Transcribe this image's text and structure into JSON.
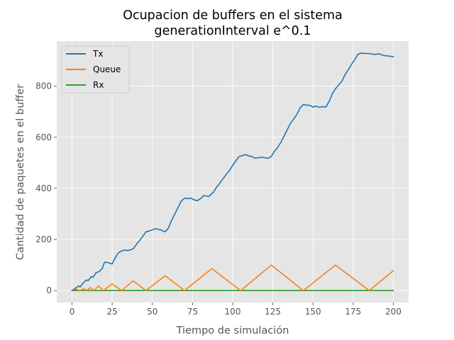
{
  "chart_data": {
    "type": "line",
    "title": [
      "Ocupacion de buffers en el sistema",
      "generationInterval e^0.1"
    ],
    "xlabel": "Tiempo de simulación",
    "ylabel": "Cantidad de paquetes en el buffer",
    "xlim": [
      -9.5,
      209.5
    ],
    "ylim": [
      -46.5,
      976.5
    ],
    "xticks": [
      0,
      25,
      50,
      75,
      100,
      125,
      150,
      175,
      200
    ],
    "xtick_labels": [
      "0",
      "25",
      "50",
      "75",
      "100",
      "125",
      "150",
      "175",
      "200"
    ],
    "yticks": [
      0,
      200,
      400,
      600,
      800
    ],
    "ytick_labels": [
      "0",
      "200",
      "400",
      "600",
      "800"
    ],
    "grid": true,
    "legend_position": "upper left",
    "style": "ggplot",
    "series": [
      {
        "name": "Tx",
        "color": "#1f77b4",
        "points": [
          [
            0,
            0
          ],
          [
            2,
            8
          ],
          [
            4,
            18
          ],
          [
            5,
            14
          ],
          [
            7,
            30
          ],
          [
            9,
            42
          ],
          [
            10,
            38
          ],
          [
            12,
            55
          ],
          [
            13,
            52
          ],
          [
            15,
            70
          ],
          [
            17,
            75
          ],
          [
            19,
            88
          ],
          [
            20,
            108
          ],
          [
            21,
            112
          ],
          [
            23,
            108
          ],
          [
            25,
            104
          ],
          [
            26,
            118
          ],
          [
            28,
            140
          ],
          [
            29,
            148
          ],
          [
            30,
            152
          ],
          [
            32,
            158
          ],
          [
            35,
            157
          ],
          [
            38,
            163
          ],
          [
            40,
            180
          ],
          [
            42,
            195
          ],
          [
            44,
            212
          ],
          [
            46,
            230
          ],
          [
            48,
            233
          ],
          [
            50,
            238
          ],
          [
            52,
            242
          ],
          [
            55,
            238
          ],
          [
            58,
            230
          ],
          [
            60,
            245
          ],
          [
            62,
            275
          ],
          [
            64,
            300
          ],
          [
            66,
            325
          ],
          [
            68,
            350
          ],
          [
            70,
            362
          ],
          [
            72,
            360
          ],
          [
            74,
            362
          ],
          [
            76,
            355
          ],
          [
            78,
            352
          ],
          [
            80,
            360
          ],
          [
            82,
            372
          ],
          [
            85,
            368
          ],
          [
            88,
            385
          ],
          [
            90,
            405
          ],
          [
            92,
            420
          ],
          [
            94,
            438
          ],
          [
            96,
            455
          ],
          [
            98,
            470
          ],
          [
            100,
            490
          ],
          [
            102,
            508
          ],
          [
            104,
            525
          ],
          [
            106,
            528
          ],
          [
            108,
            532
          ],
          [
            110,
            527
          ],
          [
            112,
            525
          ],
          [
            114,
            518
          ],
          [
            116,
            520
          ],
          [
            118,
            522
          ],
          [
            120,
            520
          ],
          [
            122,
            518
          ],
          [
            124,
            525
          ],
          [
            126,
            545
          ],
          [
            128,
            560
          ],
          [
            130,
            580
          ],
          [
            132,
            605
          ],
          [
            134,
            630
          ],
          [
            136,
            655
          ],
          [
            138,
            672
          ],
          [
            140,
            690
          ],
          [
            142,
            715
          ],
          [
            144,
            728
          ],
          [
            146,
            726
          ],
          [
            148,
            725
          ],
          [
            150,
            718
          ],
          [
            152,
            722
          ],
          [
            154,
            717
          ],
          [
            156,
            720
          ],
          [
            158,
            718
          ],
          [
            160,
            740
          ],
          [
            162,
            770
          ],
          [
            164,
            790
          ],
          [
            166,
            805
          ],
          [
            168,
            820
          ],
          [
            170,
            845
          ],
          [
            172,
            865
          ],
          [
            174,
            885
          ],
          [
            176,
            905
          ],
          [
            178,
            925
          ],
          [
            180,
            930
          ],
          [
            182,
            928
          ],
          [
            185,
            928
          ],
          [
            188,
            924
          ],
          [
            191,
            927
          ],
          [
            194,
            920
          ],
          [
            197,
            918
          ],
          [
            200,
            915
          ]
        ]
      },
      {
        "name": "Queue",
        "color": "#ff7f0e",
        "points": [
          [
            0,
            0
          ],
          [
            2.5,
            5
          ],
          [
            5,
            0
          ],
          [
            7.5,
            8
          ],
          [
            9,
            0
          ],
          [
            11.5,
            12
          ],
          [
            13.5,
            0
          ],
          [
            16.5,
            18
          ],
          [
            19.5,
            0
          ],
          [
            25,
            26
          ],
          [
            31,
            0
          ],
          [
            38,
            38
          ],
          [
            46,
            0
          ],
          [
            58,
            58
          ],
          [
            70,
            0
          ],
          [
            87,
            86
          ],
          [
            105,
            0
          ],
          [
            124,
            100
          ],
          [
            144,
            0
          ],
          [
            164,
            100
          ],
          [
            185,
            0
          ],
          [
            200,
            78
          ]
        ]
      },
      {
        "name": "Rx",
        "color": "#2ca02c",
        "points": [
          [
            0,
            0
          ],
          [
            200,
            0
          ]
        ]
      }
    ]
  }
}
